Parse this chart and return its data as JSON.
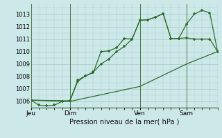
{
  "xlabel": "Pression niveau de la mer( hPa )",
  "background_color": "#cde8e8",
  "grid_color": "#a8c8c8",
  "line_color": "#2d6e2d",
  "ylim": [
    1005.5,
    1013.8
  ],
  "xlim": [
    0,
    24
  ],
  "yticks": [
    1006,
    1007,
    1008,
    1009,
    1010,
    1011,
    1012,
    1013
  ],
  "day_labels": [
    "Jeu",
    "Dim",
    "Ven",
    "Sam"
  ],
  "day_positions": [
    0,
    5,
    14,
    20
  ],
  "series1_x": [
    0,
    1,
    2,
    3,
    4,
    5,
    6,
    7,
    8,
    9,
    10,
    11,
    12,
    13,
    14,
    15,
    16,
    17,
    18,
    19,
    20,
    21,
    22,
    23,
    24
  ],
  "series1_y": [
    1006.1,
    1005.7,
    1005.65,
    1005.7,
    1006.0,
    1006.05,
    1007.6,
    1008.05,
    1008.35,
    1009.0,
    1009.4,
    1010.0,
    1010.4,
    1011.0,
    1012.5,
    1012.55,
    1012.75,
    1013.05,
    1011.05,
    1011.05,
    1012.2,
    1013.0,
    1013.3,
    1013.1,
    1010.0
  ],
  "series2_x": [
    0,
    5,
    6,
    7,
    8,
    9,
    10,
    11,
    12,
    13,
    14,
    15,
    16,
    17,
    18,
    19,
    20,
    21,
    22,
    23,
    24
  ],
  "series2_y": [
    1006.1,
    1006.05,
    1007.7,
    1008.05,
    1008.3,
    1010.0,
    1010.05,
    1010.3,
    1011.05,
    1011.0,
    1012.5,
    1012.55,
    1012.75,
    1013.05,
    1011.05,
    1011.05,
    1011.1,
    1011.0,
    1011.0,
    1011.0,
    1010.0
  ],
  "series3_x": [
    0,
    5,
    14,
    20,
    24
  ],
  "series3_y": [
    1006.1,
    1006.0,
    1007.2,
    1009.0,
    1010.0
  ]
}
